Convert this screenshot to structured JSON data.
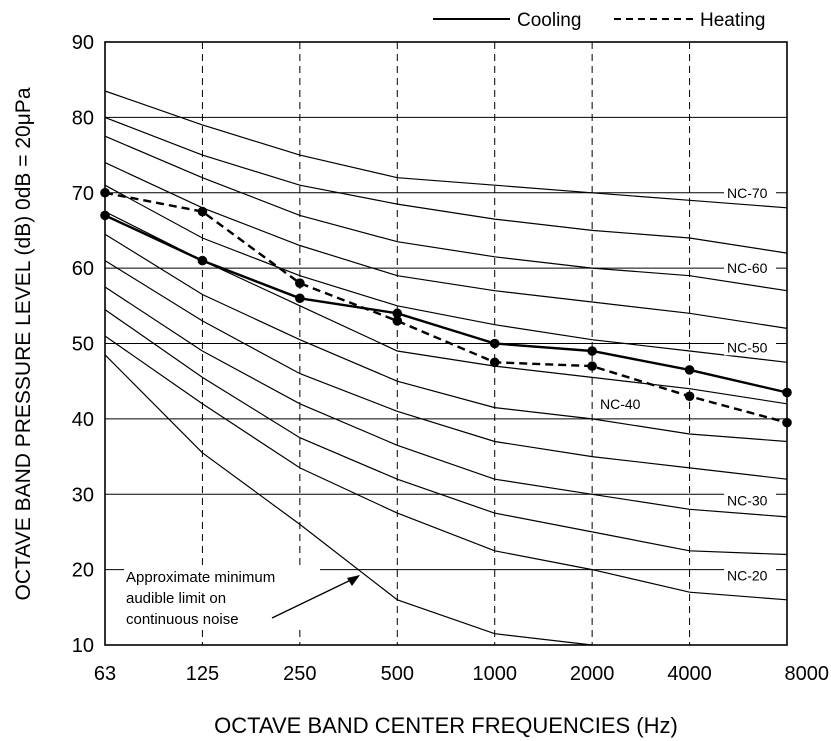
{
  "chart_data": {
    "type": "line",
    "title": "",
    "xlabel": "OCTAVE  BAND  CENTER  FREQUENCIES (Hz)",
    "ylabel": "OCTAVE  BAND  PRESSURE  LEVEL (dB)  0dB = 20μPa",
    "x_scale": "log",
    "categories": [
      "63",
      "125",
      "250",
      "500",
      "1000",
      "2000",
      "4000",
      "8000"
    ],
    "x": [
      63,
      125,
      250,
      500,
      1000,
      2000,
      4000,
      8000
    ],
    "ylim": [
      10,
      90
    ],
    "yticks": [
      10,
      20,
      30,
      40,
      50,
      60,
      70,
      80,
      90
    ],
    "grid": "horizontal solid lines every 10 dB; dashed vertical lines at each octave band",
    "legend": {
      "position": "top-right",
      "entries": [
        {
          "label": "Cooling",
          "style": "solid"
        },
        {
          "label": "Heating",
          "style": "dashed"
        }
      ]
    },
    "series": [
      {
        "name": "Cooling",
        "values": [
          67,
          61,
          56,
          54,
          50,
          49,
          46.5,
          43.5
        ]
      },
      {
        "name": "Heating",
        "values": [
          70,
          67.5,
          58,
          53,
          47.5,
          47,
          43,
          39.5
        ]
      }
    ],
    "nc_curves": [
      {
        "label": "",
        "values": [
          83.5,
          79,
          75,
          72,
          71,
          70,
          69,
          68
        ]
      },
      {
        "label": "NC-70",
        "values": [
          80,
          75,
          71,
          68.5,
          66.5,
          65,
          64,
          62
        ]
      },
      {
        "label": "",
        "values": [
          77.5,
          72,
          67,
          63.5,
          61.5,
          60,
          59,
          57
        ]
      },
      {
        "label": "NC-60",
        "values": [
          74,
          68,
          63,
          59,
          57,
          55.5,
          54,
          52
        ]
      },
      {
        "label": "",
        "values": [
          71,
          64,
          59,
          55,
          52.5,
          50.5,
          49,
          47.5
        ]
      },
      {
        "label": "NC-50",
        "values": [
          67.5,
          61,
          55,
          49,
          47,
          45.5,
          44,
          42
        ]
      },
      {
        "label": "NC-40",
        "values": [
          64.5,
          56.5,
          50.5,
          45,
          41.5,
          40,
          38,
          37
        ]
      },
      {
        "label": "",
        "values": [
          61,
          53,
          46,
          41,
          37,
          35,
          33.5,
          32
        ]
      },
      {
        "label": "NC-30",
        "values": [
          57.5,
          49,
          42,
          36.5,
          32,
          30,
          28,
          27
        ]
      },
      {
        "label": "",
        "values": [
          54.5,
          45.5,
          37.5,
          32,
          27.5,
          25,
          22.5,
          22
        ]
      },
      {
        "label": "NC-20",
        "values": [
          51,
          42,
          33.5,
          27.5,
          22.5,
          20,
          17,
          16
        ]
      },
      {
        "label": "",
        "values": [
          48.5,
          35.5,
          26,
          16,
          11.5,
          10,
          null,
          null
        ]
      }
    ],
    "annotation": {
      "lines": [
        "Approximate minimum",
        "audible limit on",
        "continuous noise"
      ]
    }
  }
}
